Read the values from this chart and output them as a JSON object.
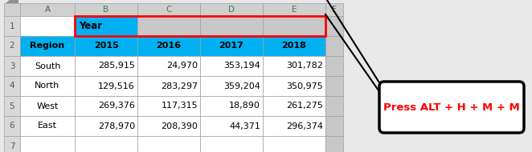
{
  "col_headers": [
    "A",
    "B",
    "C",
    "D",
    "E",
    "F"
  ],
  "row_numbers": [
    "1",
    "2",
    "3",
    "4",
    "5",
    "6",
    "7"
  ],
  "row1_label": "Year",
  "row2_labels": [
    "Region",
    "2015",
    "2016",
    "2017",
    "2018"
  ],
  "table_data": [
    [
      "South",
      "285,915",
      "24,970",
      "353,194",
      "301,782"
    ],
    [
      "North",
      "129,516",
      "283,297",
      "359,204",
      "350,975"
    ],
    [
      "West",
      "269,376",
      "117,315",
      "18,890",
      "261,275"
    ],
    [
      "East",
      "278,970",
      "208,390",
      "44,371",
      "296,374"
    ]
  ],
  "cyan_color": "#00B0F0",
  "red_color": "#FF0000",
  "header_bg": "#C0C0C0",
  "white": "#FFFFFF",
  "gray_cell": "#C8C8C8",
  "callout_text": "Press ALT + H + M + M",
  "callout_text_color": "#FF0000",
  "grid_line_color": "#A0A0A0",
  "fig_bg": "#E8E8E8",
  "rn_col_color": "#D8D8D8",
  "col_hdr_color": "#D0D0D0",
  "green_col_b_border": "#00AA00",
  "row1_b_color": "#00B0F0",
  "row1_cde_color": "#C8C8C8"
}
